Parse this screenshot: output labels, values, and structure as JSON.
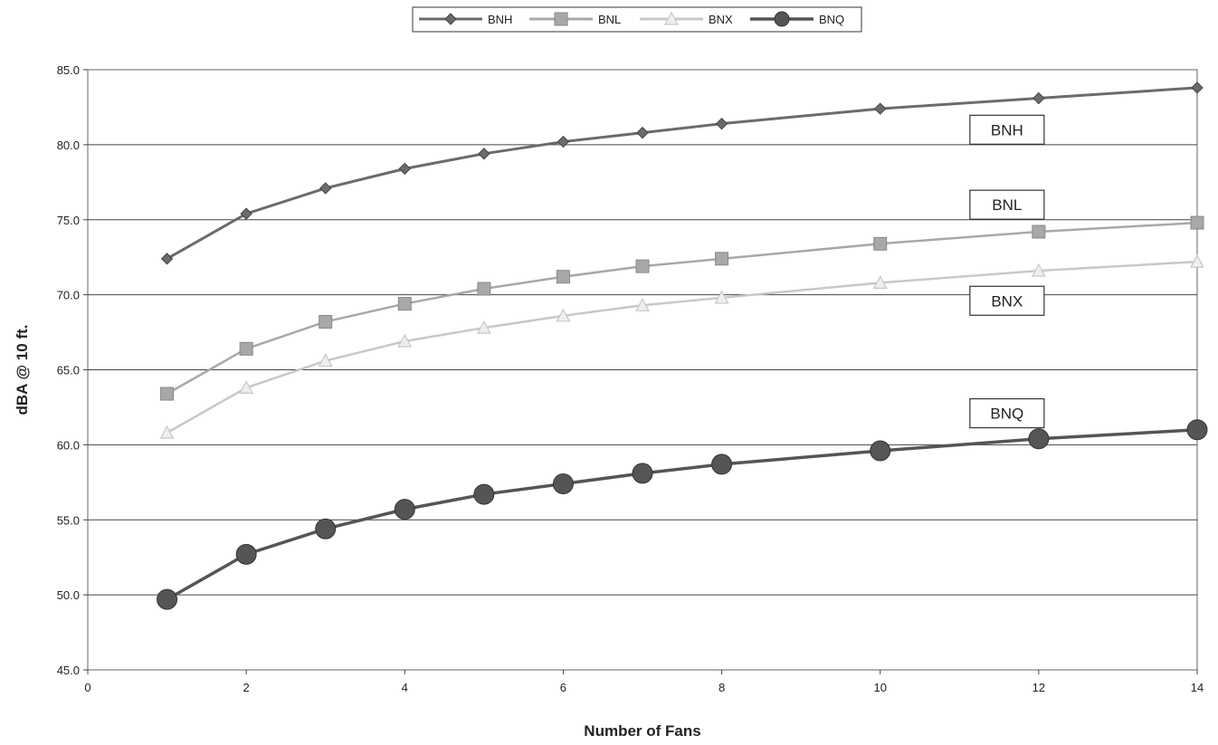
{
  "chart_data": {
    "type": "line",
    "title": "",
    "xlabel": "Number of Fans",
    "ylabel": "dBA @ 10 ft.",
    "xlim": [
      0,
      14
    ],
    "ylim": [
      45,
      85
    ],
    "x_ticks": [
      "0",
      "2",
      "4",
      "6",
      "8",
      "10",
      "12",
      "14"
    ],
    "y_ticks": [
      "45.0",
      "50.0",
      "55.0",
      "60.0",
      "65.0",
      "70.0",
      "75.0",
      "80.0",
      "85.0"
    ],
    "grid": "horizontal",
    "legend_position": "top-center",
    "series": [
      {
        "name": "BNH",
        "color": "#6b6b6b",
        "marker": "diamond",
        "x": [
          1,
          2,
          3,
          4,
          5,
          6,
          7,
          8,
          10,
          12,
          14
        ],
        "y": [
          72.4,
          75.4,
          77.1,
          78.4,
          79.4,
          80.2,
          80.8,
          81.4,
          82.4,
          83.1,
          83.8
        ]
      },
      {
        "name": "BNL",
        "color": "#a8a8a8",
        "marker": "square",
        "x": [
          1,
          2,
          3,
          4,
          5,
          6,
          7,
          8,
          10,
          12,
          14
        ],
        "y": [
          63.4,
          66.4,
          68.2,
          69.4,
          70.4,
          71.2,
          71.9,
          72.4,
          73.4,
          74.2,
          74.8
        ]
      },
      {
        "name": "BNX",
        "color": "#c8c8c8",
        "marker": "triangle",
        "x": [
          1,
          2,
          3,
          4,
          5,
          6,
          7,
          8,
          10,
          12,
          14
        ],
        "y": [
          60.8,
          63.8,
          65.6,
          66.9,
          67.8,
          68.6,
          69.3,
          69.8,
          70.8,
          71.6,
          72.2
        ]
      },
      {
        "name": "BNQ",
        "color": "#555555",
        "marker": "circle",
        "x": [
          1,
          2,
          3,
          4,
          5,
          6,
          7,
          8,
          10,
          12,
          14
        ],
        "y": [
          49.7,
          52.7,
          54.4,
          55.7,
          56.7,
          57.4,
          58.1,
          58.7,
          59.6,
          60.4,
          61.0
        ]
      }
    ],
    "callouts": [
      {
        "text": "BNH",
        "x": 11.6,
        "y": 81.0
      },
      {
        "text": "BNL",
        "x": 11.6,
        "y": 76.0
      },
      {
        "text": "BNX",
        "x": 11.6,
        "y": 69.6
      },
      {
        "text": "BNQ",
        "x": 11.6,
        "y": 62.1
      }
    ]
  }
}
